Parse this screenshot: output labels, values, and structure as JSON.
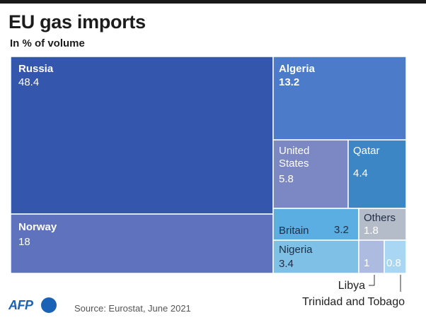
{
  "title": "EU gas imports",
  "subtitle": "In % of volume",
  "source": "Source: Eurostat, June 2021",
  "logo": {
    "text": "AFP",
    "color": "#1a62b6"
  },
  "chart_data": {
    "type": "treemap",
    "title": "EU gas imports",
    "subtitle": "In % of volume",
    "unit": "%",
    "items": [
      {
        "name": "Russia",
        "value": 48.4,
        "color": "#3556ad"
      },
      {
        "name": "Norway",
        "value": 18,
        "color": "#5e72bd"
      },
      {
        "name": "Algeria",
        "value": 13.2,
        "color": "#4c7bc9"
      },
      {
        "name": "United States",
        "value": 5.8,
        "color": "#7c88c3"
      },
      {
        "name": "Qatar",
        "value": 4.4,
        "color": "#3d86c6"
      },
      {
        "name": "Britain",
        "value": 3.2,
        "color": "#5aaee2"
      },
      {
        "name": "Nigeria",
        "value": 3.4,
        "color": "#7fc0e6"
      },
      {
        "name": "Others",
        "value": 1.8,
        "color": "#b4bcca"
      },
      {
        "name": "Libya",
        "value": 1,
        "color": "#aebbe0"
      },
      {
        "name": "Trinidad and Tobago",
        "value": 0.8,
        "color": "#a9d6f3"
      }
    ]
  }
}
